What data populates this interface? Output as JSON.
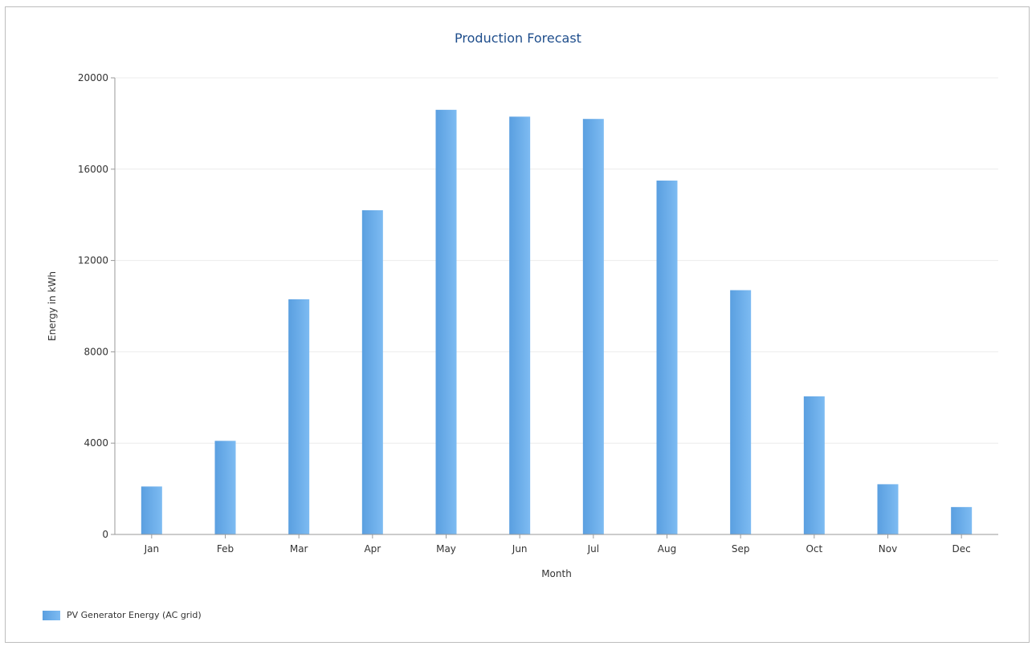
{
  "chart_data": {
    "type": "bar",
    "title": "Production Forecast",
    "xlabel": "Month",
    "ylabel": "Energy in kWh",
    "categories": [
      "Jan",
      "Feb",
      "Mar",
      "Apr",
      "May",
      "Jun",
      "Jul",
      "Aug",
      "Sep",
      "Oct",
      "Nov",
      "Dec"
    ],
    "series": [
      {
        "name": "PV Generator Energy (AC grid)",
        "values": [
          2100,
          4100,
          10300,
          14200,
          18600,
          18300,
          18200,
          15500,
          10700,
          6050,
          2200,
          1200
        ],
        "color": "#6aaee9"
      }
    ],
    "ylim": [
      0,
      20000
    ],
    "yticks": [
      "0",
      "4000",
      "8000",
      "12000",
      "16000",
      "20000"
    ],
    "grid": true,
    "legend_position": "bottom-left"
  }
}
